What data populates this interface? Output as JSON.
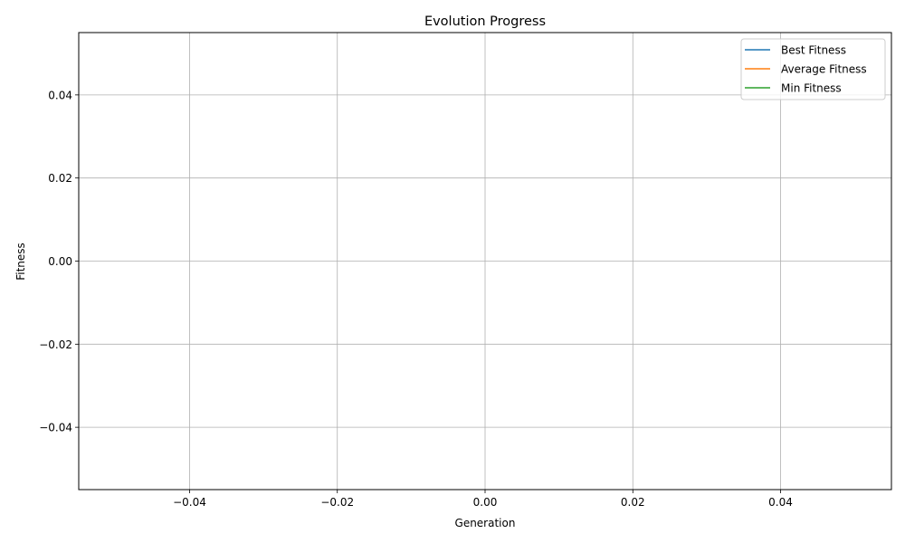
{
  "chart_data": {
    "type": "line",
    "title": "Evolution Progress",
    "xlabel": "Generation",
    "ylabel": "Fitness",
    "xlim": [
      -0.055,
      0.055
    ],
    "ylim": [
      -0.055,
      0.055
    ],
    "x_ticks": [
      -0.04,
      -0.02,
      0.0,
      0.02,
      0.04
    ],
    "x_tick_labels": [
      "−0.04",
      "−0.02",
      "0.00",
      "0.02",
      "0.04"
    ],
    "y_ticks": [
      -0.04,
      -0.02,
      0.0,
      0.02,
      0.04
    ],
    "y_tick_labels": [
      "−0.04",
      "−0.02",
      "0.00",
      "0.02",
      "0.04"
    ],
    "grid": true,
    "legend_position": "upper-right",
    "series": [
      {
        "name": "Best Fitness",
        "color": "#1f77b4",
        "x": [],
        "y": []
      },
      {
        "name": "Average Fitness",
        "color": "#ff7f0e",
        "x": [],
        "y": []
      },
      {
        "name": "Min Fitness",
        "color": "#2ca02c",
        "x": [],
        "y": []
      }
    ]
  }
}
